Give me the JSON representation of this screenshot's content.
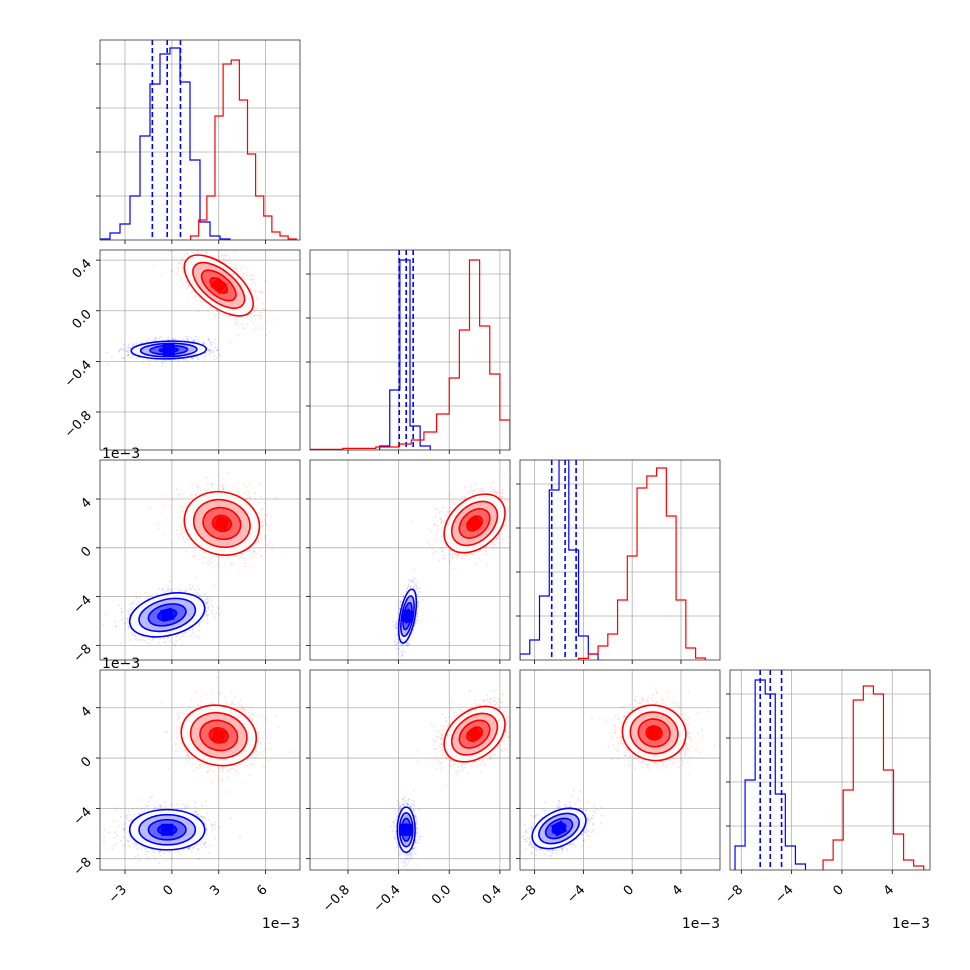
{
  "chart_data": {
    "type": "corner",
    "colors": {
      "blue": "#0000ff",
      "red": "#ff0000"
    },
    "grid": true,
    "parameters": [
      {
        "range": [
          -4.6,
          8.2
        ],
        "ticks": [
          -3,
          0,
          3,
          6
        ],
        "tick_labels": [
          "−3",
          "0",
          "3",
          "6"
        ],
        "offset_label": "1e−3"
      },
      {
        "range": [
          -1.1,
          0.48
        ],
        "ticks": [
          -0.8,
          -0.4,
          0.0,
          0.4
        ],
        "tick_labels": [
          "−0.8",
          "−0.4",
          "0.0",
          "0.4"
        ],
        "offset_label": ""
      },
      {
        "range": [
          -9.2,
          7.2
        ],
        "ticks": [
          -8,
          -4,
          0,
          4
        ],
        "tick_labels": [
          "−8",
          "−4",
          "0",
          "4"
        ],
        "offset_label": "1e−3"
      },
      {
        "range": [
          -8.9,
          7.0
        ],
        "ticks": [
          -8,
          -4,
          0,
          4
        ],
        "tick_labels": [
          "−8",
          "−4",
          "0",
          "4"
        ],
        "offset_label": "1e−3"
      }
    ],
    "y_offset_labels": [
      "1e−3",
      "1e−3"
    ],
    "histograms": [
      {
        "param": 0,
        "blue": {
          "edges": [
            -4.6,
            -3.96,
            -3.32,
            -2.68,
            -2.04,
            -1.4,
            -0.76,
            -0.12,
            0.52,
            1.16,
            1.8,
            2.44,
            3.08,
            3.72
          ],
          "counts": [
            0.005,
            0.035,
            0.08,
            0.22,
            0.52,
            0.78,
            0.93,
            0.96,
            0.79,
            0.4,
            0.09,
            0.02,
            0.005
          ],
          "quantiles": [
            -1.25,
            -0.3,
            0.55
          ]
        },
        "red": {
          "edges": [
            1.2,
            1.72,
            2.24,
            2.76,
            3.28,
            3.8,
            4.32,
            4.84,
            5.36,
            5.88,
            6.4,
            6.92,
            7.44,
            7.96
          ],
          "counts": [
            0.02,
            0.1,
            0.22,
            0.62,
            0.88,
            0.9,
            0.7,
            0.43,
            0.22,
            0.12,
            0.04,
            0.02,
            0.005
          ],
          "quantiles": []
        }
      },
      {
        "param": 1,
        "blue": {
          "edges": [
            -0.55,
            -0.47,
            -0.39,
            -0.31,
            -0.23,
            -0.15
          ],
          "counts": [
            0.02,
            0.3,
            0.95,
            0.12,
            0.02
          ],
          "quantiles": [
            -0.395,
            -0.34,
            -0.285
          ]
        },
        "red": {
          "edges": [
            -1.1,
            -0.84,
            -0.58,
            -0.4,
            -0.3,
            -0.2,
            -0.1,
            0.0,
            0.08,
            0.16,
            0.24,
            0.32,
            0.4,
            0.48
          ],
          "counts": [
            0.003,
            0.008,
            0.015,
            0.03,
            0.05,
            0.09,
            0.18,
            0.36,
            0.6,
            0.95,
            0.62,
            0.38,
            0.15
          ],
          "quantiles": []
        }
      },
      {
        "param": 2,
        "blue": {
          "edges": [
            -9.2,
            -8.4,
            -7.6,
            -6.8,
            -6.0,
            -5.2,
            -4.4,
            -3.6,
            -2.8
          ],
          "counts": [
            0.03,
            0.1,
            0.32,
            0.85,
            1.0,
            0.55,
            0.12,
            0.03
          ],
          "quantiles": [
            -6.6,
            -5.5,
            -4.6
          ]
        },
        "red": {
          "edges": [
            -4.4,
            -3.6,
            -2.8,
            -2.0,
            -1.2,
            -0.4,
            0.4,
            1.2,
            2.0,
            2.8,
            3.6,
            4.4,
            5.2,
            6.0
          ],
          "counts": [
            0.008,
            0.03,
            0.07,
            0.13,
            0.3,
            0.52,
            0.86,
            0.92,
            0.96,
            0.72,
            0.3,
            0.06,
            0.01
          ],
          "quantiles": []
        }
      },
      {
        "param": 3,
        "blue": {
          "edges": [
            -8.5,
            -7.7,
            -6.9,
            -6.1,
            -5.3,
            -4.5,
            -3.7,
            -2.9
          ],
          "counts": [
            0.12,
            0.45,
            0.95,
            0.88,
            0.38,
            0.12,
            0.03
          ],
          "quantiles": [
            -6.5,
            -5.7,
            -4.8
          ]
        },
        "red": {
          "edges": [
            -1.5,
            -0.7,
            0.1,
            0.9,
            1.7,
            2.5,
            3.3,
            4.1,
            4.9,
            5.7,
            6.5
          ],
          "counts": [
            0.05,
            0.15,
            0.4,
            0.85,
            0.92,
            0.88,
            0.5,
            0.18,
            0.05,
            0.02
          ],
          "quantiles": []
        }
      }
    ],
    "scatter_panels": [
      {
        "x_param": 0,
        "y_param": 1,
        "blue": {
          "center": [
            -0.2,
            -0.31
          ],
          "sigma": [
            1.2,
            0.035
          ],
          "rho": 0.1,
          "n": 1400
        },
        "red": {
          "center": [
            3.0,
            0.2
          ],
          "sigma": [
            1.1,
            0.12
          ],
          "rho": -0.6,
          "n": 1400
        }
      },
      {
        "x_param": 0,
        "y_param": 2,
        "blue": {
          "center": [
            -0.3,
            -5.5
          ],
          "sigma": [
            1.2,
            0.9
          ],
          "rho": 0.3,
          "n": 1400
        },
        "red": {
          "center": [
            3.2,
            2.0
          ],
          "sigma": [
            1.2,
            1.3
          ],
          "rho": -0.1,
          "n": 1400
        }
      },
      {
        "x_param": 1,
        "y_param": 2,
        "blue": {
          "center": [
            -0.33,
            -5.6
          ],
          "sigma": [
            0.035,
            1.1
          ],
          "rho": 0.5,
          "n": 1400
        },
        "red": {
          "center": [
            0.2,
            2.0
          ],
          "sigma": [
            0.12,
            1.2
          ],
          "rho": 0.35,
          "n": 1400
        }
      },
      {
        "x_param": 0,
        "y_param": 3,
        "blue": {
          "center": [
            -0.3,
            -5.7
          ],
          "sigma": [
            1.2,
            0.8
          ],
          "rho": 0.0,
          "n": 1400
        },
        "red": {
          "center": [
            3.0,
            1.8
          ],
          "sigma": [
            1.2,
            1.2
          ],
          "rho": -0.1,
          "n": 1400
        }
      },
      {
        "x_param": 1,
        "y_param": 3,
        "blue": {
          "center": [
            -0.34,
            -5.7
          ],
          "sigma": [
            0.035,
            0.9
          ],
          "rho": 0.0,
          "n": 1400
        },
        "red": {
          "center": [
            0.2,
            1.9
          ],
          "sigma": [
            0.12,
            1.1
          ],
          "rho": 0.35,
          "n": 1400
        }
      },
      {
        "x_param": 2,
        "y_param": 3,
        "blue": {
          "center": [
            -6.0,
            -5.6
          ],
          "sigma": [
            1.1,
            0.8
          ],
          "rho": 0.4,
          "n": 1400
        },
        "red": {
          "center": [
            1.8,
            2.0
          ],
          "sigma": [
            1.3,
            1.1
          ],
          "rho": -0.05,
          "n": 1400
        }
      }
    ]
  }
}
